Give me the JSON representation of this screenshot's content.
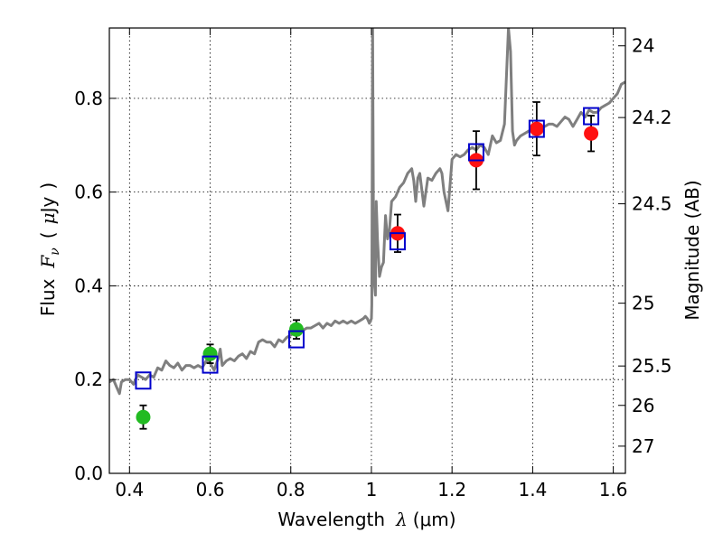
{
  "chart_data": {
    "type": "scatter",
    "xlabel": "Wavelength  λ (μm)",
    "ylabel": "Flux  F_ν  ( μJy )",
    "ylabel_parts": {
      "prefix": "Flux",
      "symbol": "F",
      "subscript": "ν",
      "open": "(",
      "unit_mu": "μ",
      "unit": "Jy",
      "close": ")"
    },
    "xlabel_parts": {
      "prefix": "Wavelength",
      "symbol": "λ",
      "unit": "(μm)"
    },
    "right_ylabel": "Magnitude (AB)",
    "xlim": [
      0.35,
      1.63
    ],
    "ylim": [
      0.0,
      0.95
    ],
    "grid": true,
    "x_ticks": [
      0.4,
      0.6,
      0.8,
      1.0,
      1.2,
      1.4,
      1.6
    ],
    "x_tick_labels": [
      "0.4",
      "0.6",
      "0.8",
      "1",
      "1.2",
      "1.4",
      "1.6"
    ],
    "y_ticks": [
      0.0,
      0.2,
      0.4,
      0.6,
      0.8
    ],
    "y_tick_labels": [
      "0.0",
      "0.2",
      "0.4",
      "0.6",
      "0.8"
    ],
    "right_ticks": [
      {
        "label": "24",
        "flux": 0.912
      },
      {
        "label": "24.2",
        "flux": 0.759
      },
      {
        "label": "24.5",
        "flux": 0.575
      },
      {
        "label": "25",
        "flux": 0.363
      },
      {
        "label": "25.5",
        "flux": 0.229
      },
      {
        "label": "26",
        "flux": 0.145
      },
      {
        "label": "27",
        "flux": 0.058
      }
    ],
    "colors": {
      "spectrum": "#7f7f7f",
      "green": "#22bb22",
      "red": "#ff1111",
      "model": "#0000cc",
      "errorbar": "#000000"
    },
    "spectrum": {
      "name": "model spectrum",
      "x": [
        0.35,
        0.36,
        0.37,
        0.375,
        0.38,
        0.39,
        0.4,
        0.41,
        0.42,
        0.43,
        0.44,
        0.45,
        0.46,
        0.47,
        0.48,
        0.49,
        0.5,
        0.51,
        0.52,
        0.53,
        0.54,
        0.55,
        0.56,
        0.57,
        0.58,
        0.59,
        0.6,
        0.61,
        0.62,
        0.625,
        0.63,
        0.64,
        0.65,
        0.66,
        0.67,
        0.68,
        0.69,
        0.7,
        0.71,
        0.72,
        0.73,
        0.74,
        0.75,
        0.76,
        0.77,
        0.78,
        0.79,
        0.8,
        0.81,
        0.82,
        0.83,
        0.84,
        0.85,
        0.86,
        0.87,
        0.88,
        0.89,
        0.9,
        0.91,
        0.92,
        0.93,
        0.94,
        0.95,
        0.96,
        0.97,
        0.98,
        0.985,
        0.99,
        0.995,
        1.0,
        1.001,
        1.003,
        1.005,
        1.008,
        1.01,
        1.012,
        1.015,
        1.02,
        1.025,
        1.03,
        1.035,
        1.04,
        1.045,
        1.05,
        1.06,
        1.07,
        1.08,
        1.09,
        1.1,
        1.105,
        1.11,
        1.115,
        1.12,
        1.13,
        1.14,
        1.15,
        1.16,
        1.17,
        1.175,
        1.18,
        1.19,
        1.2,
        1.21,
        1.22,
        1.23,
        1.24,
        1.25,
        1.26,
        1.27,
        1.28,
        1.29,
        1.3,
        1.31,
        1.32,
        1.33,
        1.34,
        1.345,
        1.35,
        1.355,
        1.36,
        1.37,
        1.38,
        1.39,
        1.4,
        1.41,
        1.42,
        1.43,
        1.44,
        1.45,
        1.46,
        1.47,
        1.48,
        1.49,
        1.5,
        1.51,
        1.52,
        1.53,
        1.54,
        1.55,
        1.56,
        1.57,
        1.58,
        1.59,
        1.6,
        1.61,
        1.62,
        1.63
      ],
      "y": [
        0.195,
        0.2,
        0.18,
        0.17,
        0.195,
        0.2,
        0.2,
        0.19,
        0.21,
        0.205,
        0.2,
        0.21,
        0.205,
        0.225,
        0.22,
        0.24,
        0.23,
        0.225,
        0.235,
        0.22,
        0.23,
        0.23,
        0.225,
        0.23,
        0.225,
        0.24,
        0.235,
        0.22,
        0.245,
        0.265,
        0.23,
        0.24,
        0.245,
        0.24,
        0.25,
        0.255,
        0.245,
        0.26,
        0.255,
        0.28,
        0.285,
        0.28,
        0.28,
        0.27,
        0.285,
        0.28,
        0.29,
        0.295,
        0.3,
        0.295,
        0.305,
        0.31,
        0.31,
        0.315,
        0.32,
        0.31,
        0.32,
        0.315,
        0.325,
        0.32,
        0.325,
        0.32,
        0.325,
        0.32,
        0.325,
        0.33,
        0.335,
        0.33,
        0.32,
        0.33,
        0.36,
        0.95,
        0.55,
        0.4,
        0.38,
        0.58,
        0.5,
        0.42,
        0.44,
        0.45,
        0.55,
        0.5,
        0.52,
        0.58,
        0.59,
        0.61,
        0.62,
        0.64,
        0.65,
        0.625,
        0.58,
        0.63,
        0.64,
        0.57,
        0.63,
        0.625,
        0.64,
        0.65,
        0.64,
        0.6,
        0.56,
        0.67,
        0.68,
        0.675,
        0.68,
        0.69,
        0.695,
        0.69,
        0.7,
        0.695,
        0.68,
        0.72,
        0.705,
        0.71,
        0.745,
        0.95,
        0.9,
        0.73,
        0.7,
        0.71,
        0.72,
        0.725,
        0.73,
        0.735,
        0.725,
        0.735,
        0.74,
        0.745,
        0.745,
        0.74,
        0.75,
        0.76,
        0.755,
        0.74,
        0.755,
        0.77,
        0.76,
        0.775,
        0.77,
        0.77,
        0.78,
        0.785,
        0.79,
        0.8,
        0.81,
        0.83,
        0.835
      ]
    },
    "series": [
      {
        "name": "green points",
        "color": "green",
        "x": [
          0.434,
          0.6,
          0.814
        ],
        "y": [
          0.12,
          0.255,
          0.307
        ],
        "yerr": [
          0.025,
          0.02,
          0.02
        ]
      },
      {
        "name": "red points",
        "color": "red",
        "x": [
          1.065,
          1.26,
          1.41,
          1.545
        ],
        "y": [
          0.512,
          0.668,
          0.735,
          0.725
        ],
        "yerr": [
          0.04,
          0.062,
          0.057,
          0.038
        ]
      },
      {
        "name": "model photometry",
        "color": "model",
        "marker": "square",
        "x": [
          0.434,
          0.6,
          0.814,
          1.065,
          1.26,
          1.41,
          1.545
        ],
        "y": [
          0.198,
          0.232,
          0.286,
          0.495,
          0.685,
          0.735,
          0.762
        ]
      }
    ]
  }
}
